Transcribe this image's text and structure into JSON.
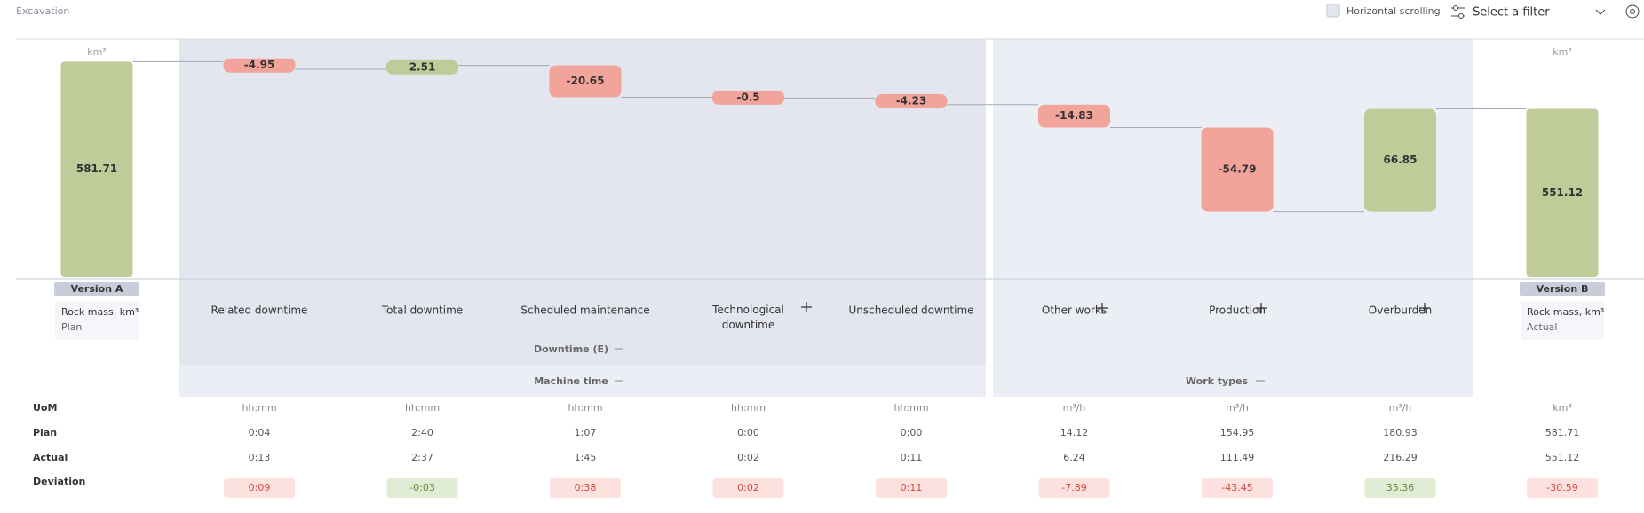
{
  "header": {
    "title": "Excavation",
    "horizontal_scrolling": "Horizontal scrolling",
    "filter": "Select a filter"
  },
  "chart_data": {
    "type": "waterfall",
    "unit": "km³",
    "categories": [
      "Version A",
      "Related downtime",
      "Total downtime",
      "Scheduled maintenance",
      "Technological downtime",
      "Unscheduled downtime",
      "Other works",
      "Production",
      "Overburden",
      "Version B"
    ],
    "measures": [
      "absolute",
      "relative",
      "relative",
      "relative",
      "relative",
      "relative",
      "relative",
      "relative",
      "relative",
      "absolute"
    ],
    "values": [
      581.71,
      -4.95,
      2.51,
      -20.65,
      -0.5,
      -4.23,
      -14.83,
      -54.79,
      66.85,
      551.12
    ],
    "ylim": [
      442,
      590
    ],
    "colors": {
      "total": "#bfcc9a",
      "increase": "#bfcc9a",
      "decrease": "#f2a49b",
      "connector": "#a3a8b5"
    }
  },
  "start_label": {
    "title": "Rock mass, km³",
    "subtitle": "Plan"
  },
  "end_label": {
    "title": "Rock mass, km³",
    "subtitle": "Actual"
  },
  "groups": {
    "downtime": "Downtime (E)",
    "machine_time": "Machine time",
    "work_types": "Work types"
  },
  "table": {
    "row_labels": [
      "UoM",
      "Plan",
      "Actual",
      "Deviation"
    ],
    "rows": [
      [
        "hh:mm",
        "hh:mm",
        "hh:mm",
        "hh:mm",
        "hh:mm",
        "m³/h",
        "m³/h",
        "m³/h",
        "km³"
      ],
      [
        "0:04",
        "2:40",
        "1:07",
        "0:00",
        "0:00",
        "14.12",
        "154.95",
        "180.93",
        "581.71"
      ],
      [
        "0:13",
        "2:37",
        "1:45",
        "0:02",
        "0:11",
        "6.24",
        "111.49",
        "216.29",
        "551.12"
      ],
      [
        "0:09",
        "-0:03",
        "0:38",
        "0:02",
        "0:11",
        "-7.89",
        "-43.45",
        "35.36",
        "-30.59"
      ]
    ],
    "deviation_status": [
      "bad",
      "good",
      "bad",
      "bad",
      "bad",
      "bad",
      "bad",
      "good",
      "bad"
    ]
  }
}
